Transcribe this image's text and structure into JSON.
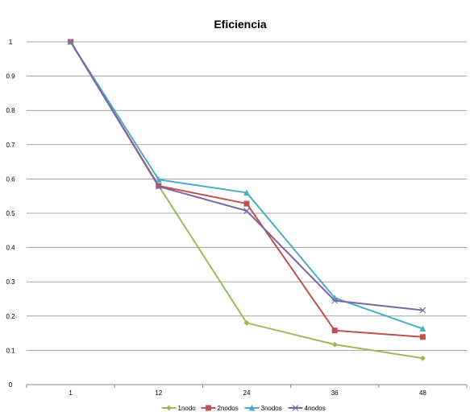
{
  "chart_data": {
    "type": "line",
    "title": "Eficiencia",
    "xlabel": "",
    "ylabel": "",
    "categories": [
      "1",
      "12",
      "24",
      "36",
      "48"
    ],
    "ylim": [
      0,
      1
    ],
    "yticks": [
      "0",
      "0.1",
      "0.2",
      "0.3",
      "0.4",
      "0.5",
      "0.6",
      "0.7",
      "0.8",
      "0.9",
      "1"
    ],
    "grid": true,
    "legend_position": "bottom",
    "series": [
      {
        "name": "1nodo",
        "color": "#9bbb59",
        "marker": "diamond",
        "values": [
          1.0,
          0.58,
          0.18,
          0.117,
          0.077
        ]
      },
      {
        "name": "2nodos",
        "color": "#c0504d",
        "marker": "square",
        "values": [
          1.0,
          0.58,
          0.528,
          0.158,
          0.139
        ]
      },
      {
        "name": "3nodos",
        "color": "#4bacc6",
        "marker": "triangle",
        "values": [
          1.0,
          0.598,
          0.56,
          0.253,
          0.163
        ]
      },
      {
        "name": "4nodos",
        "color": "#8064a2",
        "marker": "x",
        "values": [
          1.0,
          0.578,
          0.507,
          0.245,
          0.217
        ]
      }
    ]
  }
}
